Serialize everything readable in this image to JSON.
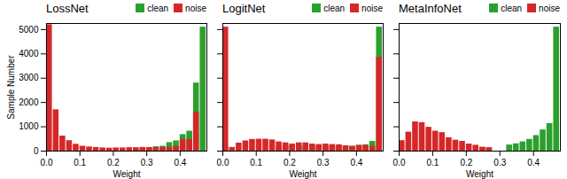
{
  "chart_data": [
    {
      "type": "histogram",
      "title": "LossNet",
      "xlabel": "Weight",
      "ylabel": "Sample Number",
      "bins": [
        0.0,
        0.02,
        0.04,
        0.06,
        0.08,
        0.1,
        0.12,
        0.14,
        0.16,
        0.18,
        0.2,
        0.22,
        0.24,
        0.26,
        0.28,
        0.3,
        0.32,
        0.34,
        0.36,
        0.38,
        0.4,
        0.42,
        0.44,
        0.46,
        0.48
      ],
      "series": [
        {
          "name": "clean",
          "color": "#2ca02c",
          "values": [
            0,
            0,
            0,
            0,
            0,
            0,
            0,
            0,
            0,
            0,
            0,
            0,
            0,
            80,
            100,
            130,
            180,
            200,
            350,
            420,
            680,
            820,
            2800,
            5100
          ]
        },
        {
          "name": "noise",
          "color": "#d62728",
          "values": [
            5200,
            1700,
            620,
            430,
            280,
            200,
            170,
            150,
            130,
            120,
            130,
            130,
            140,
            140,
            150,
            150,
            140,
            150,
            160,
            200,
            480,
            480,
            1600,
            0
          ]
        }
      ],
      "xlim": [
        0.0,
        0.48
      ],
      "xticks": [
        {
          "value": 0.0,
          "label": "0.0"
        },
        0.1,
        0.2,
        0.3,
        0.4
      ],
      "ylim": [
        0,
        5250
      ],
      "yticks": [
        0,
        1000,
        2000,
        3000,
        4000,
        5000
      ],
      "legend": "upper right"
    },
    {
      "type": "histogram",
      "title": "LogitNet",
      "xlabel": "Weight",
      "bins": [
        0.0,
        0.02,
        0.04,
        0.06,
        0.08,
        0.1,
        0.12,
        0.14,
        0.16,
        0.18,
        0.2,
        0.22,
        0.24,
        0.26,
        0.28,
        0.3,
        0.32,
        0.34,
        0.36,
        0.38,
        0.4,
        0.42,
        0.44,
        0.46,
        0.48
      ],
      "series": [
        {
          "name": "clean",
          "color": "#2ca02c",
          "values": [
            150,
            0,
            0,
            0,
            0,
            0,
            0,
            0,
            200,
            210,
            230,
            230,
            220,
            220,
            230,
            220,
            220,
            200,
            210,
            200,
            230,
            260,
            400,
            5100
          ]
        },
        {
          "name": "noise",
          "color": "#d62728",
          "values": [
            5100,
            150,
            330,
            420,
            480,
            490,
            490,
            460,
            380,
            340,
            290,
            340,
            340,
            290,
            270,
            290,
            270,
            260,
            220,
            190,
            240,
            230,
            190,
            3850
          ]
        }
      ],
      "xlim": [
        0.0,
        0.48
      ],
      "xticks": [
        {
          "value": 0.0,
          "label": "0.0"
        },
        0.1,
        0.2,
        0.3,
        0.4
      ],
      "ylim": [
        0,
        5250
      ],
      "yticks": [
        0,
        1000,
        2000,
        3000,
        4000,
        5000
      ],
      "tick_labels": "x",
      "legend": "upper right"
    },
    {
      "type": "histogram",
      "title": "MetaInfoNet",
      "xlabel": "Weight",
      "bins": [
        0.0,
        0.02,
        0.04,
        0.06,
        0.08,
        0.1,
        0.12,
        0.14,
        0.16,
        0.18,
        0.2,
        0.22,
        0.24,
        0.26,
        0.28,
        0.3,
        0.32,
        0.34,
        0.36,
        0.38,
        0.4,
        0.42,
        0.44,
        0.46,
        0.48
      ],
      "series": [
        {
          "name": "clean",
          "color": "#2ca02c",
          "values": [
            0,
            0,
            0,
            0,
            0,
            0,
            0,
            0,
            0,
            0,
            0,
            0,
            150,
            130,
            0,
            0,
            250,
            300,
            380,
            480,
            640,
            870,
            1130,
            5100
          ]
        },
        {
          "name": "noise",
          "color": "#d62728",
          "values": [
            430,
            780,
            1200,
            1170,
            980,
            820,
            760,
            550,
            450,
            400,
            290,
            240,
            160,
            140,
            0,
            0,
            0,
            0,
            0,
            0,
            0,
            0,
            0,
            0
          ]
        }
      ],
      "xlim": [
        0.0,
        0.48
      ],
      "xticks": [
        {
          "value": 0.0,
          "label": "0.0"
        },
        0.1,
        0.2,
        0.3,
        0.4
      ],
      "ylim": [
        0,
        5250
      ],
      "yticks": [
        0,
        1000,
        2000,
        3000,
        4000,
        5000
      ],
      "tick_labels": "x",
      "legend": "upper right"
    }
  ]
}
